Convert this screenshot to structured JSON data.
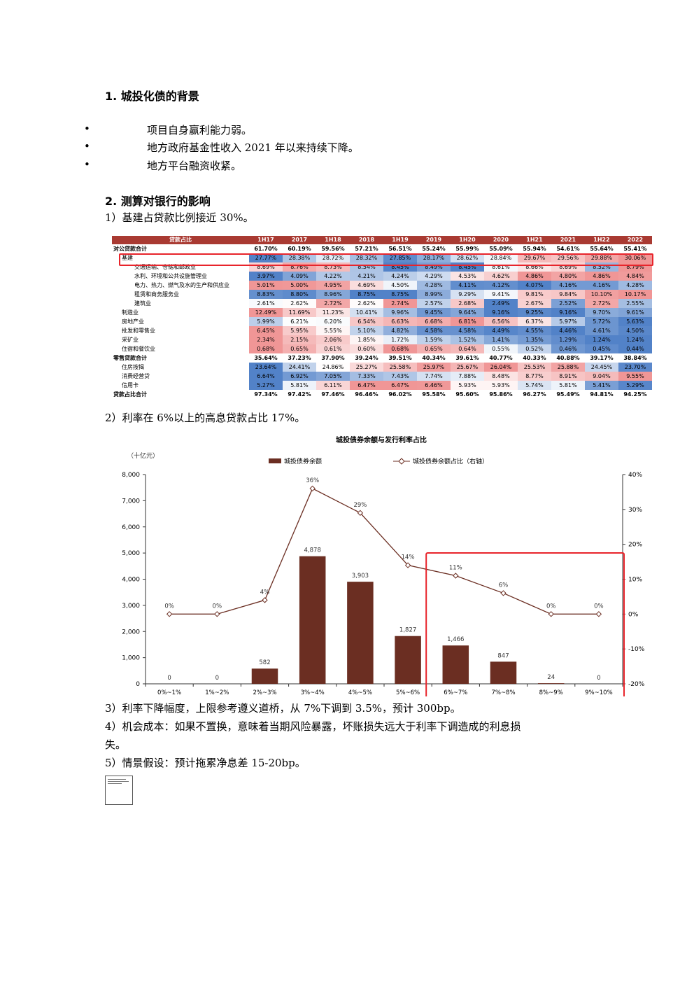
{
  "section1": {
    "heading": "1.  城投化债的背景",
    "bullets": [
      "项目自身赢利能力弱。",
      "地方政府基金性收入 2021 年以来持续下降。",
      "地方平台融资收紧。"
    ]
  },
  "section2": {
    "heading": "2.  测算对银行的影响",
    "p1": "1）基建占贷款比例接近 30%。",
    "p2": "2）利率在 6%以上的高息贷款占比 17%。",
    "p3": "3）利率下降幅度，上限参考遵义道桥，从 7%下调到 3.5%，预计 300bp。",
    "p4_line1": "4）机会成本：如果不置换，意味着当期风险暴露，坏账损失远大于利率下调造成的利息损",
    "p4_line2": "失。",
    "p5": "5）情景假设：预计拖累净息差 15-20bp。"
  },
  "loan_table": {
    "header_label": "贷款占比",
    "columns": [
      "1H17",
      "2017",
      "1H18",
      "2018",
      "1H19",
      "2019",
      "1H20",
      "2020",
      "1H21",
      "2021",
      "1H22",
      "2022"
    ],
    "rows": [
      {
        "label": "对公贷款合计",
        "level": 0,
        "bold": true,
        "values": [
          "61.70%",
          "60.19%",
          "59.56%",
          "57.21%",
          "56.51%",
          "55.24%",
          "55.99%",
          "55.09%",
          "55.94%",
          "54.61%",
          "55.64%",
          "55.41%"
        ]
      },
      {
        "label": "基建",
        "level": 1,
        "bold": false,
        "values": [
          "27.77%",
          "28.38%",
          "28.72%",
          "28.32%",
          "27.85%",
          "28.17%",
          "28.62%",
          "28.84%",
          "29.67%",
          "29.56%",
          "29.88%",
          "30.06%"
        ]
      },
      {
        "label": "交通运输、仓储和邮政业",
        "level": 2,
        "bold": false,
        "values": [
          "8.69%",
          "8.76%",
          "8.73%",
          "8.54%",
          "8.45%",
          "8.49%",
          "8.45%",
          "8.61%",
          "8.66%",
          "8.69%",
          "8.52%",
          "8.79%"
        ]
      },
      {
        "label": "水利、环境和公共设施管理业",
        "level": 2,
        "bold": false,
        "values": [
          "3.97%",
          "4.09%",
          "4.22%",
          "4.21%",
          "4.24%",
          "4.29%",
          "4.53%",
          "4.62%",
          "4.86%",
          "4.80%",
          "4.86%",
          "4.84%"
        ]
      },
      {
        "label": "电力、热力、燃气及水的生产和供应业",
        "level": 2,
        "bold": false,
        "values": [
          "5.01%",
          "5.00%",
          "4.95%",
          "4.69%",
          "4.50%",
          "4.28%",
          "4.11%",
          "4.12%",
          "4.07%",
          "4.16%",
          "4.16%",
          "4.28%"
        ]
      },
      {
        "label": "租赁和商务服务业",
        "level": 2,
        "bold": false,
        "values": [
          "8.83%",
          "8.80%",
          "8.96%",
          "8.75%",
          "8.75%",
          "8.99%",
          "9.29%",
          "9.41%",
          "9.81%",
          "9.84%",
          "10.10%",
          "10.17%"
        ]
      },
      {
        "label": "建筑业",
        "level": 2,
        "bold": false,
        "values": [
          "2.61%",
          "2.62%",
          "2.72%",
          "2.62%",
          "2.74%",
          "2.57%",
          "2.68%",
          "2.49%",
          "2.67%",
          "2.52%",
          "2.72%",
          "2.55%"
        ]
      },
      {
        "label": "制造业",
        "level": 1,
        "bold": false,
        "values": [
          "12.49%",
          "11.69%",
          "11.23%",
          "10.41%",
          "9.96%",
          "9.45%",
          "9.64%",
          "9.16%",
          "9.25%",
          "9.16%",
          "9.70%",
          "9.61%"
        ]
      },
      {
        "label": "房地产业",
        "level": 1,
        "bold": false,
        "values": [
          "5.99%",
          "6.21%",
          "6.20%",
          "6.54%",
          "6.63%",
          "6.68%",
          "6.81%",
          "6.56%",
          "6.37%",
          "5.97%",
          "5.72%",
          "5.63%"
        ]
      },
      {
        "label": "批发和零售业",
        "level": 1,
        "bold": false,
        "values": [
          "6.45%",
          "5.95%",
          "5.55%",
          "5.10%",
          "4.82%",
          "4.58%",
          "4.58%",
          "4.49%",
          "4.55%",
          "4.46%",
          "4.61%",
          "4.50%"
        ]
      },
      {
        "label": "采矿业",
        "level": 1,
        "bold": false,
        "values": [
          "2.34%",
          "2.15%",
          "2.06%",
          "1.85%",
          "1.72%",
          "1.59%",
          "1.52%",
          "1.41%",
          "1.35%",
          "1.29%",
          "1.24%",
          "1.24%"
        ]
      },
      {
        "label": "住宿和餐饮业",
        "level": 1,
        "bold": false,
        "values": [
          "0.68%",
          "0.65%",
          "0.61%",
          "0.60%",
          "0.68%",
          "0.65%",
          "0.64%",
          "0.55%",
          "0.52%",
          "0.46%",
          "0.45%",
          "0.44%"
        ]
      },
      {
        "label": "零售贷款合计",
        "level": 0,
        "bold": true,
        "values": [
          "35.64%",
          "37.23%",
          "37.90%",
          "39.24%",
          "39.51%",
          "40.34%",
          "39.61%",
          "40.77%",
          "40.33%",
          "40.88%",
          "39.17%",
          "38.84%"
        ]
      },
      {
        "label": "住房按揭",
        "level": 1,
        "bold": false,
        "values": [
          "23.64%",
          "24.41%",
          "24.86%",
          "25.27%",
          "25.58%",
          "25.97%",
          "25.67%",
          "26.04%",
          "25.53%",
          "25.88%",
          "24.45%",
          "23.70%"
        ]
      },
      {
        "label": "消费经营贷",
        "level": 1,
        "bold": false,
        "values": [
          "6.64%",
          "6.92%",
          "7.05%",
          "7.33%",
          "7.43%",
          "7.74%",
          "7.88%",
          "8.48%",
          "8.77%",
          "8.91%",
          "9.04%",
          "9.55%"
        ]
      },
      {
        "label": "信用卡",
        "level": 1,
        "bold": false,
        "values": [
          "5.27%",
          "5.81%",
          "6.11%",
          "6.47%",
          "6.47%",
          "6.46%",
          "5.93%",
          "5.93%",
          "5.74%",
          "5.81%",
          "5.41%",
          "5.29%"
        ]
      },
      {
        "label": "贷款占比合计",
        "level": 0,
        "bold": true,
        "values": [
          "97.34%",
          "97.42%",
          "97.46%",
          "96.46%",
          "96.02%",
          "95.58%",
          "95.60%",
          "95.86%",
          "96.27%",
          "95.49%",
          "94.81%",
          "94.25%"
        ]
      }
    ]
  },
  "colors": {
    "header": "#a93a32",
    "bar": "#6b2e22",
    "line": "#6b2e22",
    "highlight_box": "#e8242b"
  },
  "chart_data": {
    "type": "bar",
    "title": "城投债券余额与发行利率占比",
    "unit_label": "（十亿元）",
    "categories": [
      "0%~1%",
      "1%~2%",
      "2%~3%",
      "3%~4%",
      "4%~5%",
      "5%~6%",
      "6%~7%",
      "7%~8%",
      "8%~9%",
      "9%~10%"
    ],
    "series": [
      {
        "name": "城投债券余额",
        "type": "bar",
        "axis": "left",
        "values": [
          0,
          0,
          582,
          4878,
          3903,
          1827,
          1466,
          847,
          24,
          0
        ],
        "labels": [
          "0",
          "0",
          "582",
          "4,878",
          "3,903",
          "1,827",
          "1,466",
          "847",
          "24",
          "0"
        ]
      },
      {
        "name": "城投债券余额占比（右轴）",
        "type": "line",
        "axis": "right",
        "values": [
          0,
          0,
          4,
          36,
          29,
          14,
          11,
          6,
          0,
          0
        ],
        "labels": [
          "0%",
          "0%",
          "4%",
          "36%",
          "29%",
          "14%",
          "11%",
          "6%",
          "0%",
          "0%"
        ]
      }
    ],
    "ylim_left": [
      0,
      8000
    ],
    "yticks_left": [
      "0",
      "1,000",
      "2,000",
      "3,000",
      "4,000",
      "5,000",
      "6,000",
      "7,000",
      "8,000"
    ],
    "ylim_right": [
      -20,
      40
    ],
    "yticks_right": [
      "-20%",
      "-10%",
      "0%",
      "10%",
      "20%",
      "30%",
      "40%"
    ],
    "legend_position": "top-center",
    "highlight_categories": [
      "6%~7%",
      "7%~8%",
      "8%~9%",
      "9%~10%"
    ],
    "grid": false
  }
}
